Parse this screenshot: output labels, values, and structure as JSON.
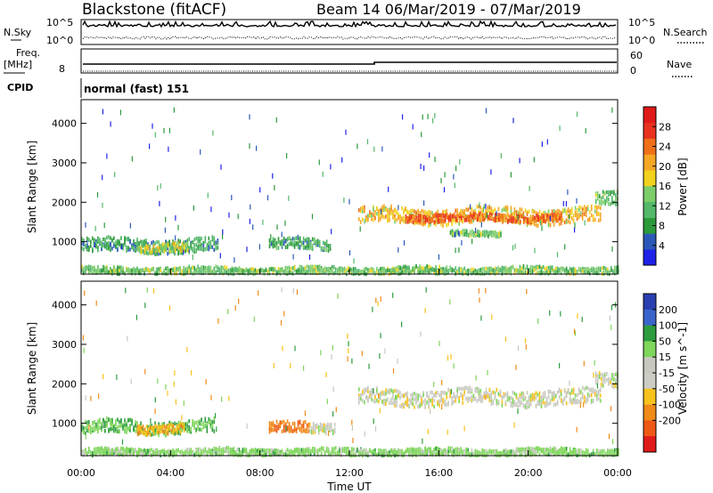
{
  "header": {
    "station": "Blackstone (fitACF)",
    "beam_dates": "Beam 14  06/Mar/2019 - 07/Mar/2019"
  },
  "top_panels": {
    "nsky_label": "N.Sky",
    "nsearch_label": "N.Search",
    "noise_top": "10^5",
    "noise_bottom": "10^0",
    "freq_label_1": "Freq.",
    "freq_label_2": "[MHz]",
    "freq_tick": "8",
    "nave_top": "60",
    "nave_bottom": "0",
    "nave_label": "Nave",
    "cpid_label": "CPID",
    "cpid_value": "normal (fast) 151"
  },
  "colors": {
    "power": [
      "#1e22e6",
      "#2b58b8",
      "#2b9a3a",
      "#53b86a",
      "#7ccd6a",
      "#f2d21e",
      "#f5a623",
      "#f07018",
      "#e8321e",
      "#e01a18"
    ],
    "velocity": [
      "#2a3fb0",
      "#3a64cc",
      "#2c9c3e",
      "#7ed65a",
      "#c8c8c0",
      "#ccccc4",
      "#f7c21b",
      "#f08a18",
      "#ee5a16",
      "#e01a18"
    ]
  },
  "chart_data": [
    {
      "type": "heatmap",
      "name": "power-panel",
      "ylabel": "Slant Range [km]",
      "xlabel": "Time UT",
      "x_ticks": [
        "00:00",
        "04:00",
        "08:00",
        "12:00",
        "16:00",
        "20:00",
        "00:00"
      ],
      "x_range_hours": [
        0,
        24
      ],
      "y_ticks": [
        "1000",
        "2000",
        "3000",
        "4000"
      ],
      "y_range_km": [
        180,
        4600
      ],
      "colorbar": {
        "label": "Power [dB]",
        "ticks": [
          "4",
          "8",
          "12",
          "16",
          "20",
          "24",
          "28"
        ],
        "range": [
          0,
          30
        ]
      },
      "features": [
        {
          "t0": 0.0,
          "t1": 6.1,
          "r": 900,
          "w": 170,
          "v": 8
        },
        {
          "t0": 2.5,
          "t1": 4.8,
          "r": 850,
          "w": 110,
          "v": 15
        },
        {
          "t0": 8.4,
          "t1": 11.2,
          "r": 930,
          "w": 130,
          "v": 9
        },
        {
          "t0": 12.4,
          "t1": 23.2,
          "r": 1650,
          "w": 190,
          "v": 18
        },
        {
          "t0": 14.5,
          "t1": 21.5,
          "r": 1600,
          "w": 90,
          "v": 23
        },
        {
          "t0": 16.5,
          "t1": 18.8,
          "r": 1200,
          "w": 60,
          "v": 12
        },
        {
          "t0": 23.0,
          "t1": 24.0,
          "r": 2150,
          "w": 180,
          "v": 12
        },
        {
          "t0": 0.0,
          "t1": 24.0,
          "r": 260,
          "w": 90,
          "v": 12
        }
      ]
    },
    {
      "type": "heatmap",
      "name": "velocity-panel",
      "ylabel": "Slant Range [km]",
      "xlabel": "Time UT",
      "x_ticks": [
        "00:00",
        "04:00",
        "08:00",
        "12:00",
        "16:00",
        "20:00",
        "00:00"
      ],
      "x_range_hours": [
        0,
        24
      ],
      "y_ticks": [
        "1000",
        "2000",
        "3000",
        "4000"
      ],
      "y_range_km": [
        180,
        4600
      ],
      "colorbar": {
        "label": "Velocity [m s^-1]",
        "ticks": [
          "200",
          "100",
          "50",
          "15",
          "-15",
          "-50",
          "-100",
          "-200"
        ]
      },
      "features": [
        {
          "t0": 0.0,
          "t1": 6.0,
          "r": 900,
          "w": 170,
          "v": 30
        },
        {
          "t0": 2.5,
          "t1": 4.6,
          "r": 860,
          "w": 110,
          "v": -30
        },
        {
          "t0": 8.4,
          "t1": 10.2,
          "r": 880,
          "w": 130,
          "v": -70
        },
        {
          "t0": 10.2,
          "t1": 11.4,
          "r": 900,
          "w": 120,
          "v": 0
        },
        {
          "t0": 12.4,
          "t1": 23.2,
          "r": 1650,
          "w": 190,
          "v": 0
        },
        {
          "t0": 23.0,
          "t1": 24.0,
          "r": 2150,
          "w": 180,
          "v": 0
        },
        {
          "t0": 0.0,
          "t1": 24.0,
          "r": 260,
          "w": 90,
          "v": 20
        }
      ]
    }
  ]
}
